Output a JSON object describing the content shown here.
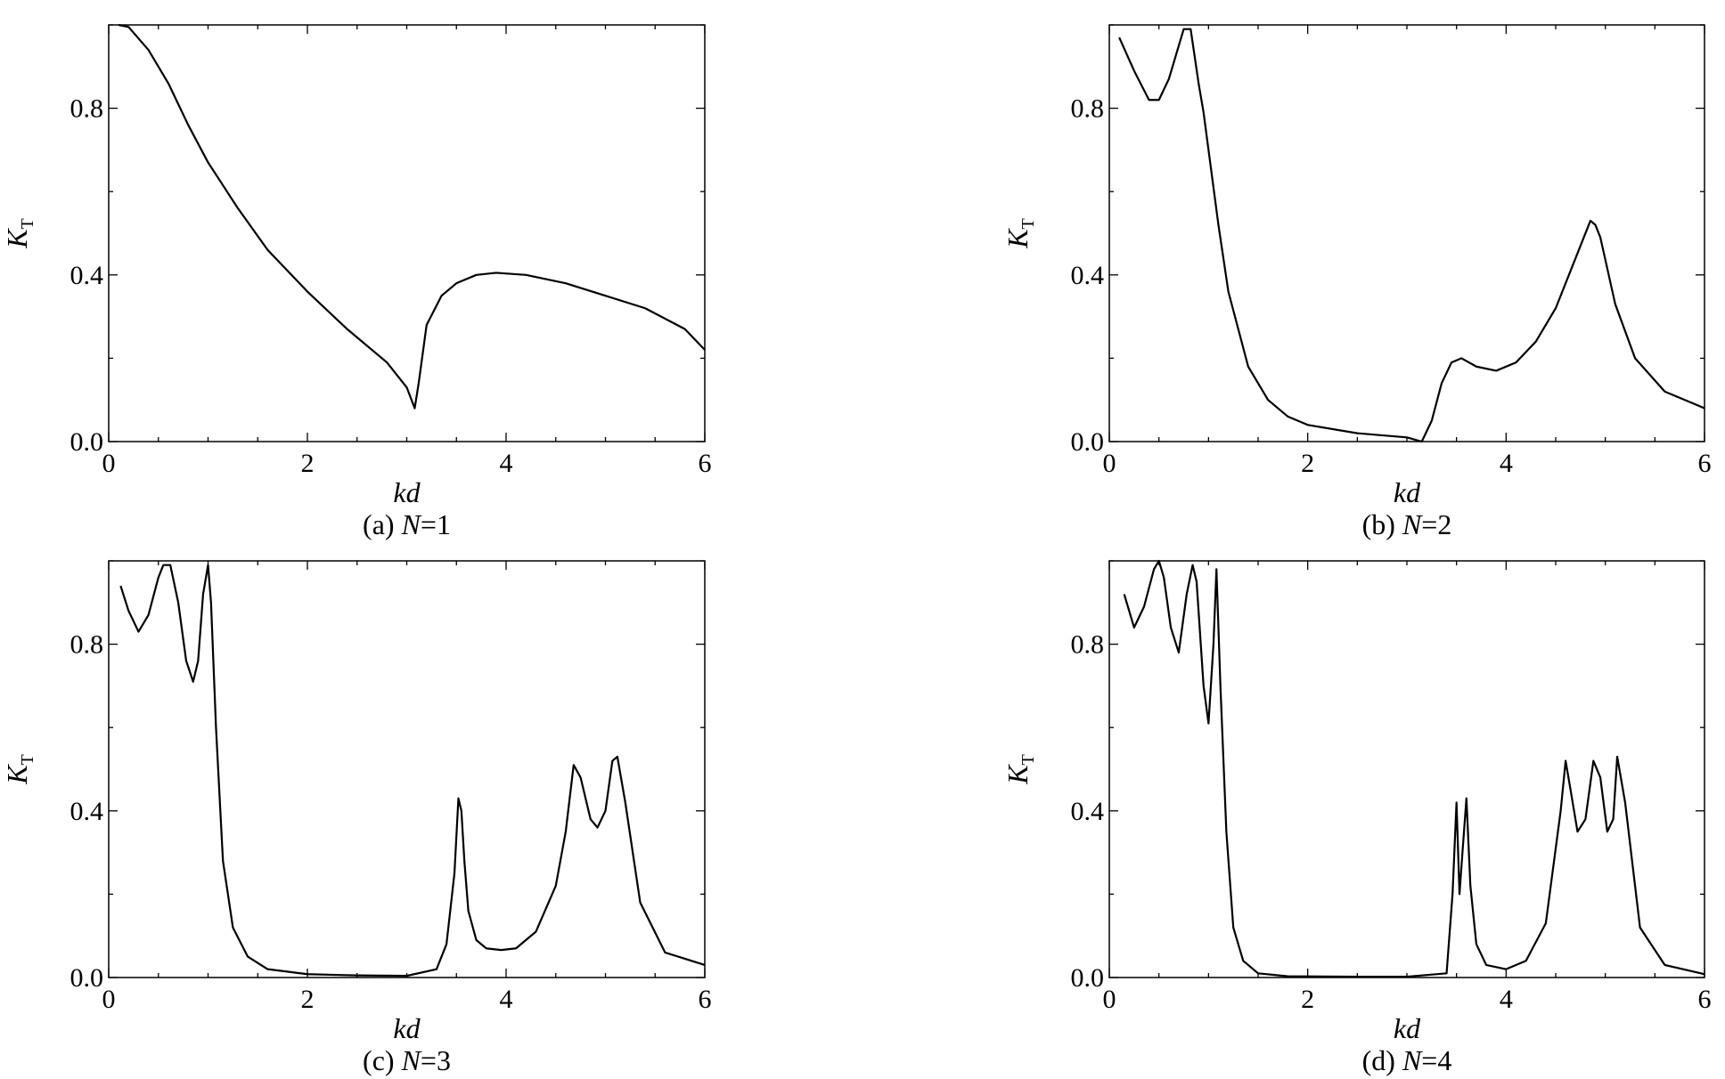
{
  "chart_data": [
    {
      "type": "line",
      "panel_id": "a",
      "caption": {
        "prefix": "(a) ",
        "var": "N",
        "suffix": "=1"
      },
      "xlabel": "kd",
      "ylabel": {
        "main": "K",
        "sub": "T"
      },
      "xlim": [
        0,
        6
      ],
      "ylim": [
        0,
        1.0
      ],
      "xticks": [
        0,
        2,
        4,
        6
      ],
      "xtick_labels": [
        "0",
        "2",
        "4",
        "6"
      ],
      "yticks": [
        0.0,
        0.4,
        0.8
      ],
      "ytick_labels": [
        "0.0",
        "0.4",
        "0.8"
      ],
      "grid": false,
      "series": [
        {
          "x": [
            0.1,
            0.2,
            0.4,
            0.6,
            0.8,
            1.0,
            1.3,
            1.6,
            2.0,
            2.4,
            2.8,
            3.0,
            3.08,
            3.12,
            3.2,
            3.35,
            3.5,
            3.7,
            3.9,
            4.2,
            4.6,
            5.0,
            5.4,
            5.8,
            6.0
          ],
          "y": [
            1.0,
            0.995,
            0.94,
            0.86,
            0.76,
            0.67,
            0.56,
            0.46,
            0.36,
            0.27,
            0.19,
            0.13,
            0.08,
            0.14,
            0.28,
            0.35,
            0.38,
            0.4,
            0.405,
            0.4,
            0.38,
            0.35,
            0.32,
            0.27,
            0.22
          ]
        }
      ]
    },
    {
      "type": "line",
      "panel_id": "b",
      "caption": {
        "prefix": "(b) ",
        "var": "N",
        "suffix": "=2"
      },
      "xlabel": "kd",
      "ylabel": {
        "main": "K",
        "sub": "T"
      },
      "xlim": [
        0,
        6
      ],
      "ylim": [
        0,
        1.0
      ],
      "xticks": [
        0,
        2,
        4,
        6
      ],
      "xtick_labels": [
        "0",
        "2",
        "4",
        "6"
      ],
      "yticks": [
        0.0,
        0.4,
        0.8
      ],
      "ytick_labels": [
        "0.0",
        "0.4",
        "0.8"
      ],
      "grid": false,
      "series": [
        {
          "x": [
            0.1,
            0.25,
            0.4,
            0.5,
            0.6,
            0.7,
            0.75,
            0.82,
            0.9,
            0.95,
            1.0,
            1.1,
            1.2,
            1.4,
            1.6,
            1.8,
            2.0,
            2.5,
            3.0,
            3.15,
            3.25,
            3.35,
            3.45,
            3.55,
            3.7,
            3.9,
            4.1,
            4.3,
            4.5,
            4.7,
            4.85,
            4.9,
            4.95,
            5.1,
            5.3,
            5.6,
            6.0
          ],
          "y": [
            0.97,
            0.89,
            0.82,
            0.82,
            0.87,
            0.95,
            0.99,
            0.99,
            0.86,
            0.79,
            0.7,
            0.52,
            0.36,
            0.18,
            0.1,
            0.06,
            0.04,
            0.02,
            0.01,
            0.0,
            0.05,
            0.14,
            0.19,
            0.2,
            0.18,
            0.17,
            0.19,
            0.24,
            0.32,
            0.44,
            0.53,
            0.52,
            0.49,
            0.33,
            0.2,
            0.12,
            0.08
          ]
        }
      ]
    },
    {
      "type": "line",
      "panel_id": "c",
      "caption": {
        "prefix": "(c) ",
        "var": "N",
        "suffix": "=3"
      },
      "xlabel": "kd",
      "ylabel": {
        "main": "K",
        "sub": "T"
      },
      "xlim": [
        0,
        6
      ],
      "ylim": [
        0,
        1.0
      ],
      "xticks": [
        0,
        2,
        4,
        6
      ],
      "xtick_labels": [
        "0",
        "2",
        "4",
        "6"
      ],
      "yticks": [
        0.0,
        0.4,
        0.8
      ],
      "ytick_labels": [
        "0.0",
        "0.4",
        "0.8"
      ],
      "grid": false,
      "series": [
        {
          "x": [
            0.12,
            0.2,
            0.3,
            0.4,
            0.5,
            0.55,
            0.62,
            0.7,
            0.78,
            0.85,
            0.9,
            0.95,
            1.0,
            1.03,
            1.08,
            1.15,
            1.25,
            1.4,
            1.6,
            2.0,
            2.5,
            3.0,
            3.3,
            3.4,
            3.48,
            3.52,
            3.55,
            3.58,
            3.62,
            3.7,
            3.8,
            3.95,
            4.1,
            4.3,
            4.5,
            4.6,
            4.68,
            4.75,
            4.85,
            4.92,
            5.0,
            5.07,
            5.12,
            5.2,
            5.35,
            5.6,
            6.0
          ],
          "y": [
            0.94,
            0.88,
            0.83,
            0.87,
            0.96,
            0.99,
            0.99,
            0.9,
            0.76,
            0.71,
            0.76,
            0.92,
            0.99,
            0.9,
            0.6,
            0.28,
            0.12,
            0.05,
            0.02,
            0.008,
            0.005,
            0.004,
            0.02,
            0.08,
            0.25,
            0.43,
            0.4,
            0.28,
            0.16,
            0.09,
            0.07,
            0.066,
            0.07,
            0.11,
            0.22,
            0.35,
            0.51,
            0.48,
            0.38,
            0.36,
            0.4,
            0.52,
            0.53,
            0.42,
            0.18,
            0.06,
            0.03
          ]
        }
      ]
    },
    {
      "type": "line",
      "panel_id": "d",
      "caption": {
        "prefix": "(d) ",
        "var": "N",
        "suffix": "=4"
      },
      "xlabel": "kd",
      "ylabel": {
        "main": "K",
        "sub": "T"
      },
      "xlim": [
        0,
        6
      ],
      "ylim": [
        0,
        1.0
      ],
      "xticks": [
        0,
        2,
        4,
        6
      ],
      "xtick_labels": [
        "0",
        "2",
        "4",
        "6"
      ],
      "yticks": [
        0.0,
        0.4,
        0.8
      ],
      "ytick_labels": [
        "0.0",
        "0.4",
        "0.8"
      ],
      "grid": false,
      "series": [
        {
          "x": [
            0.15,
            0.25,
            0.35,
            0.45,
            0.5,
            0.55,
            0.62,
            0.7,
            0.78,
            0.84,
            0.88,
            0.95,
            1.0,
            1.05,
            1.08,
            1.12,
            1.18,
            1.25,
            1.35,
            1.5,
            1.8,
            2.5,
            3.0,
            3.4,
            3.46,
            3.5,
            3.53,
            3.56,
            3.6,
            3.64,
            3.7,
            3.8,
            4.0,
            4.2,
            4.4,
            4.55,
            4.6,
            4.65,
            4.72,
            4.8,
            4.88,
            4.95,
            5.02,
            5.08,
            5.12,
            5.2,
            5.35,
            5.6,
            6.0
          ],
          "y": [
            0.92,
            0.84,
            0.89,
            0.98,
            1.0,
            0.96,
            0.84,
            0.78,
            0.92,
            0.99,
            0.95,
            0.7,
            0.61,
            0.8,
            0.98,
            0.7,
            0.35,
            0.12,
            0.04,
            0.01,
            0.003,
            0.002,
            0.002,
            0.01,
            0.2,
            0.42,
            0.2,
            0.3,
            0.43,
            0.22,
            0.08,
            0.03,
            0.02,
            0.04,
            0.13,
            0.4,
            0.52,
            0.45,
            0.35,
            0.38,
            0.52,
            0.48,
            0.35,
            0.38,
            0.53,
            0.42,
            0.12,
            0.03,
            0.008
          ]
        }
      ]
    }
  ]
}
